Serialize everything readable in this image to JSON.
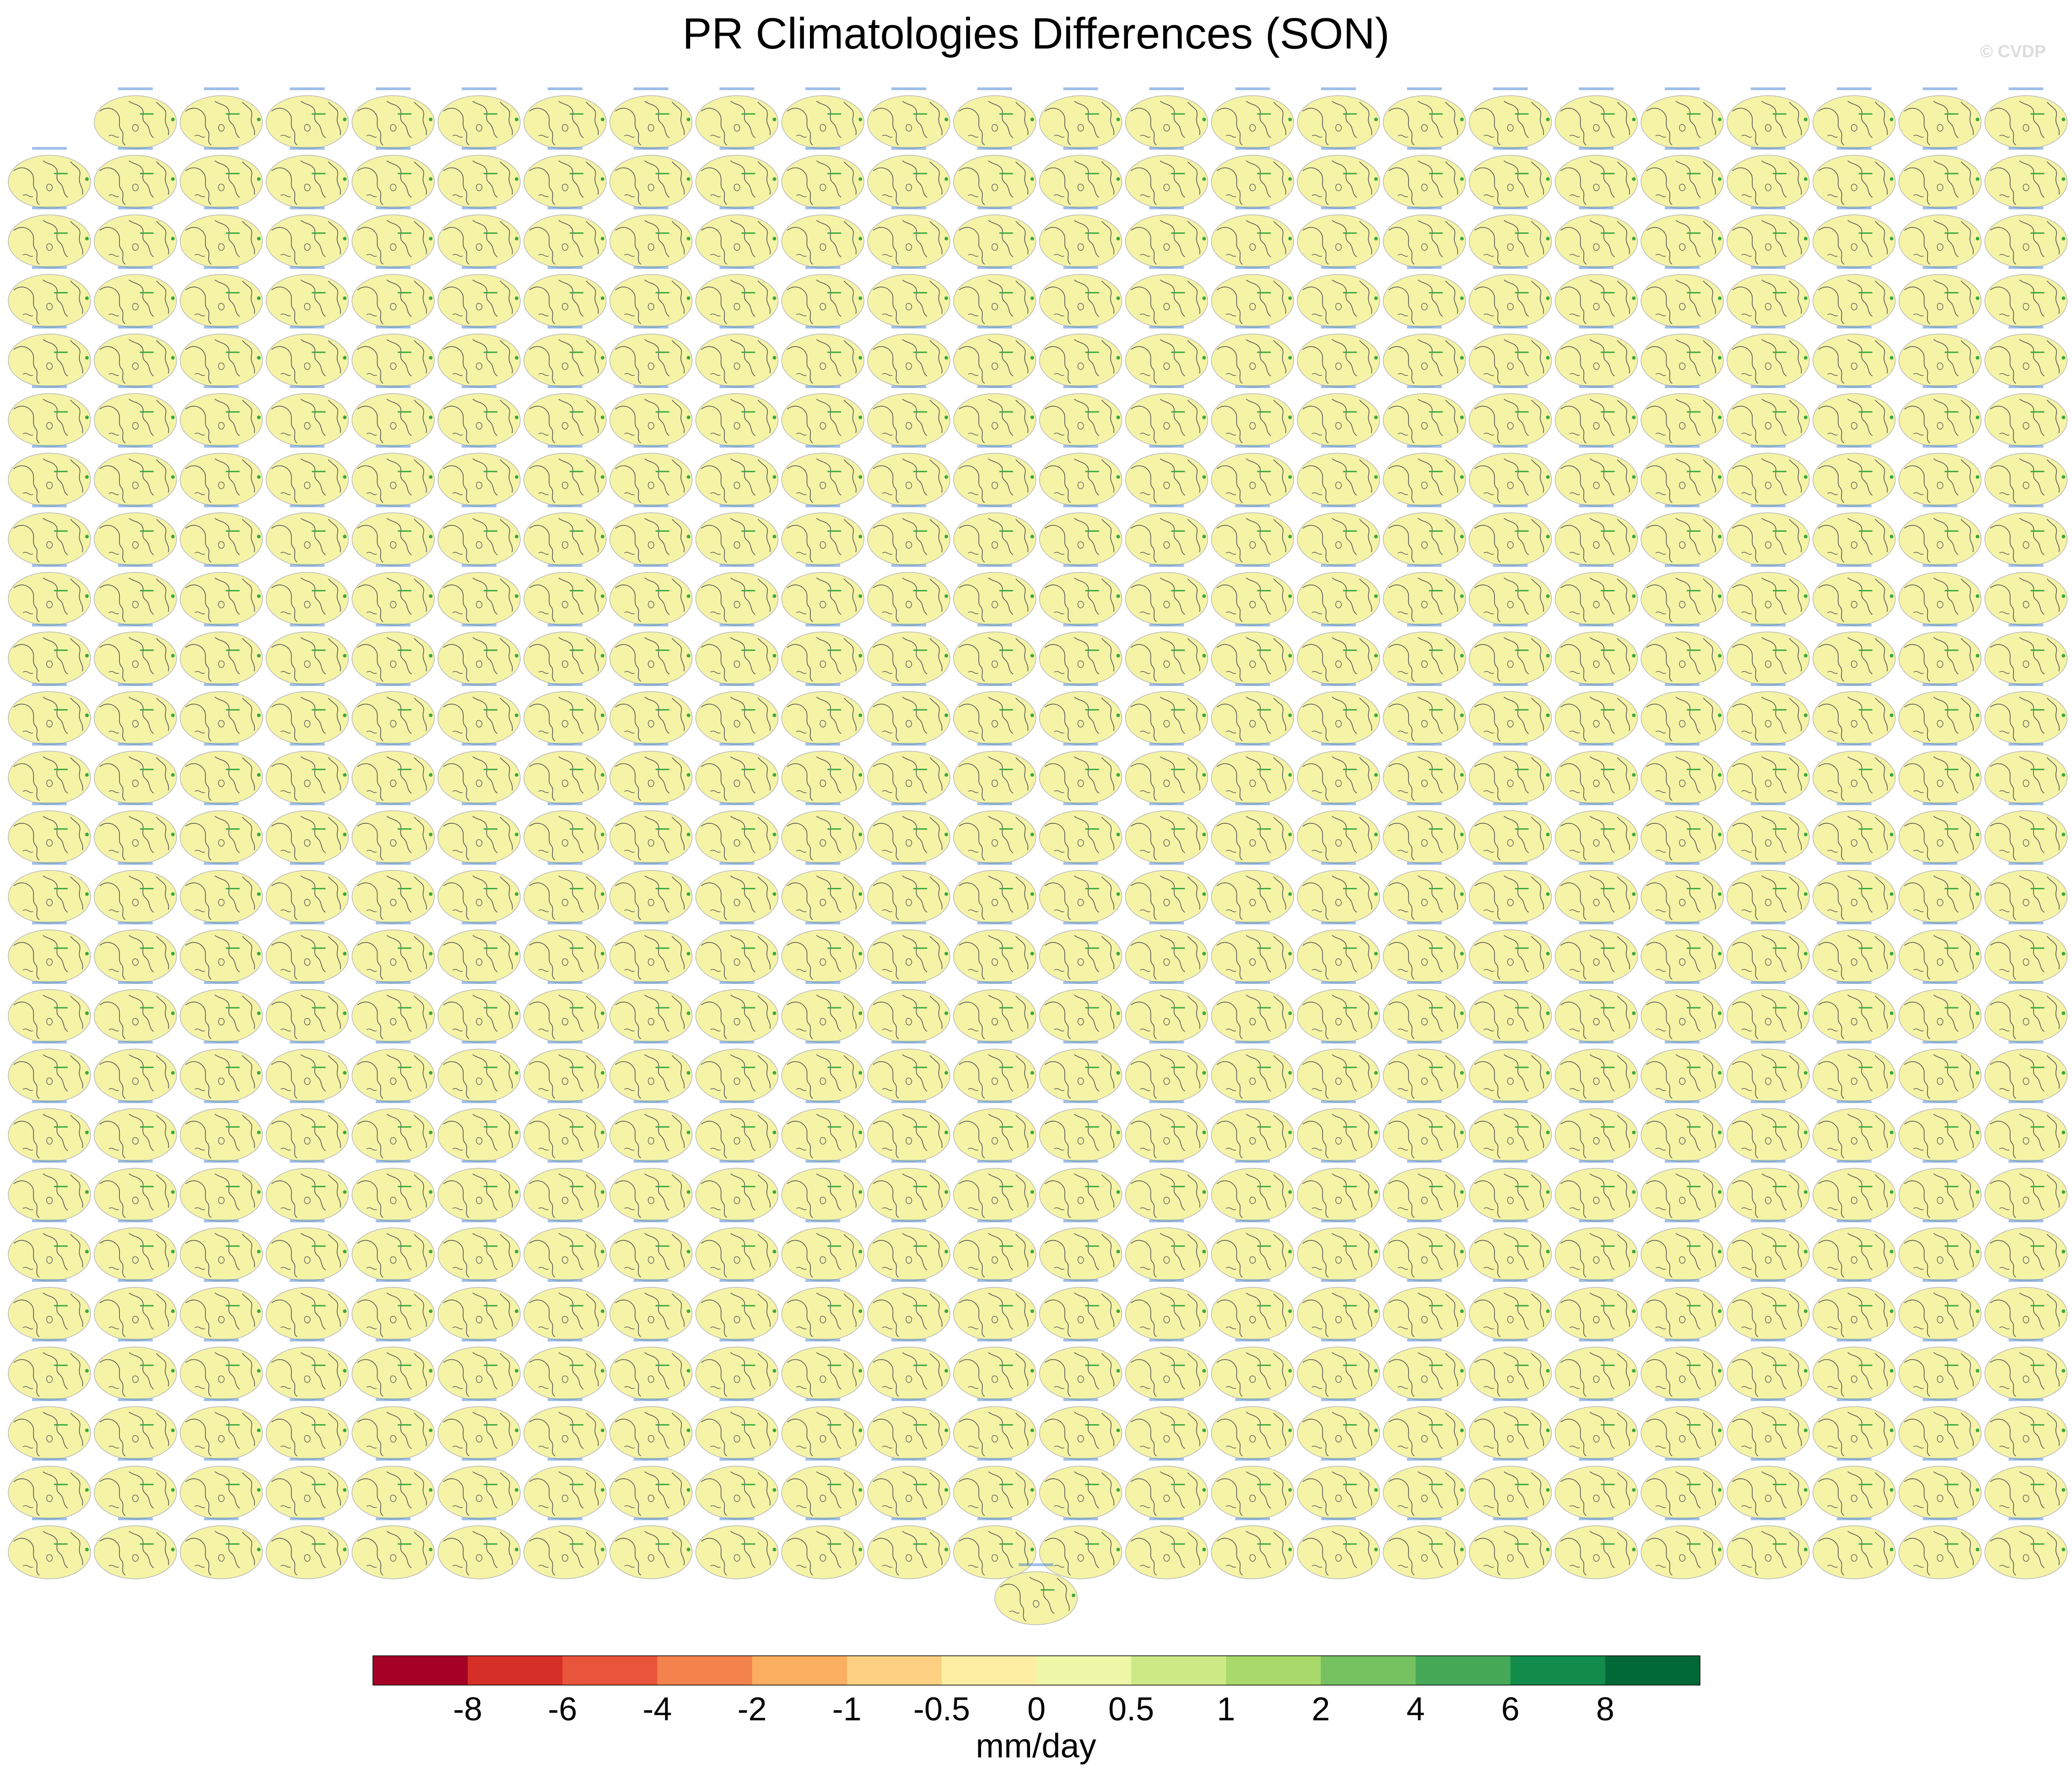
{
  "title": "PR Climatologies Differences (SON)",
  "watermark": "© CVDP",
  "grid": {
    "columns": 24,
    "rows": 25,
    "first_row_skipped_columns": 1,
    "bottom_center_panels": 1,
    "panel_fill": "#f5f3a6",
    "coast_color": "#555555",
    "anomaly_color": "#3aa840",
    "panel_label_color": "#3f7fd0"
  },
  "colorbar": {
    "label": "mm/day",
    "ticks": [
      "-8",
      "-6",
      "-4",
      "-2",
      "-1",
      "-0.5",
      "0",
      "0.5",
      "1",
      "2",
      "4",
      "6",
      "8"
    ],
    "colors": [
      "#a50026",
      "#d62f27",
      "#e8553a",
      "#f4824c",
      "#fbad60",
      "#fdd082",
      "#fdeea3",
      "#eef7a8",
      "#cde985",
      "#a8d96a",
      "#76c261",
      "#46a957",
      "#128c4a",
      "#006837"
    ]
  }
}
